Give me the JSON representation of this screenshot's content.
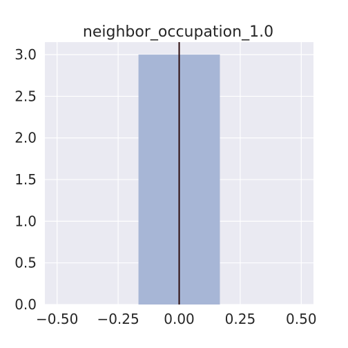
{
  "chart_data": {
    "type": "bar",
    "title": "neighbor_occupation_1.0",
    "xlabel": "",
    "ylabel": "",
    "xlim": [
      -0.55,
      0.55
    ],
    "ylim": [
      0.0,
      3.15
    ],
    "grid": true,
    "bars": [
      {
        "x_start": -0.1667,
        "x_end": 0.1667,
        "value": 3
      }
    ],
    "vline": {
      "x": 0.0
    },
    "x_ticks": [
      -0.5,
      -0.25,
      0.0,
      0.25,
      0.5
    ],
    "x_tick_labels": [
      "−0.50",
      "−0.25",
      "0.00",
      "0.25",
      "0.50"
    ],
    "y_ticks": [
      0.0,
      0.5,
      1.0,
      1.5,
      2.0,
      2.5,
      3.0
    ],
    "y_tick_labels": [
      "0.0",
      "0.5",
      "1.0",
      "1.5",
      "2.0",
      "2.5",
      "3.0"
    ],
    "colors": {
      "background": "#eaeaf2",
      "grid": "#ffffff",
      "bar": "#a7b6d6",
      "vline": "#2b0a0a"
    }
  }
}
